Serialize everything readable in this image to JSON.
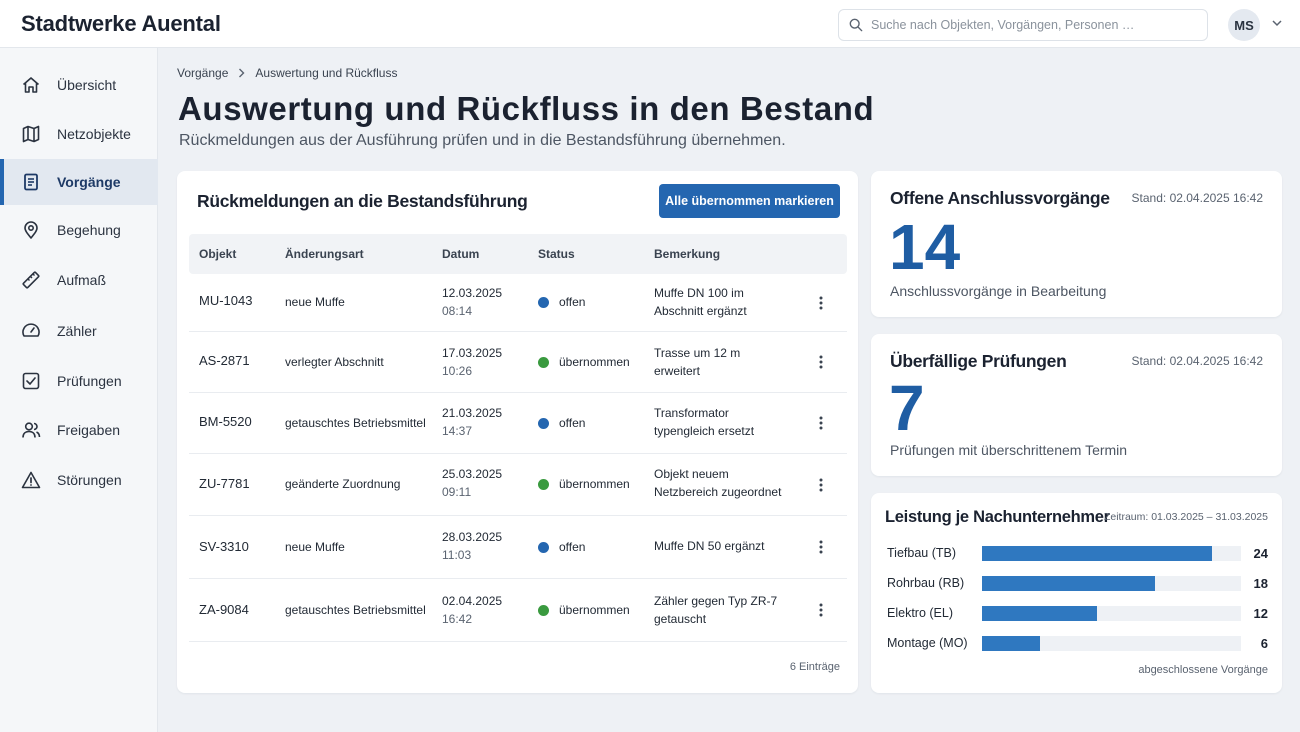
{
  "app": {
    "title": "Stadtwerke Auental"
  },
  "search": {
    "placeholder": "Suche nach Objekten, Vorgängen, Personen …"
  },
  "user": {
    "initials": "MS"
  },
  "sidebar": {
    "items": [
      {
        "label": "Übersicht",
        "icon": "home-icon"
      },
      {
        "label": "Netzobjekte",
        "icon": "map-icon"
      },
      {
        "label": "Vorgänge",
        "icon": "document-icon",
        "active": true
      },
      {
        "label": "Begehung",
        "icon": "map-pin-icon"
      },
      {
        "label": "Aufmaß",
        "icon": "ruler-icon"
      },
      {
        "label": "Zähler",
        "icon": "gauge-icon"
      },
      {
        "label": "Prüfungen",
        "icon": "checkbox-icon"
      },
      {
        "label": "Freigaben",
        "icon": "users-icon"
      },
      {
        "label": "Störungen",
        "icon": "warning-icon"
      }
    ]
  },
  "breadcrumb": {
    "parent": "Vorgänge",
    "current": "Auswertung und Rückfluss"
  },
  "page": {
    "title": "Auswertung und Rückfluss in den Bestand",
    "subtitle": "Rückmeldungen aus der Ausführung prüfen und in die Bestandsführung übernehmen."
  },
  "feedback": {
    "title": "Rückmeldungen an die Bestandsführung",
    "action_label": "Alle übernommen markieren",
    "columns": [
      "Objekt",
      "Änderungsart",
      "Datum",
      "Status",
      "Bemerkung"
    ],
    "rows": [
      {
        "object": "MU-1043",
        "type": "neue Muffe",
        "date": "12.03.2025",
        "time": "08:14",
        "status": "offen",
        "note": "Muffe DN 100 im Abschnitt ergänzt"
      },
      {
        "object": "AS-2871",
        "type": "verlegter Abschnitt",
        "date": "17.03.2025",
        "time": "10:26",
        "status": "übernommen",
        "note": "Trasse um 12 m erweitert"
      },
      {
        "object": "BM-5520",
        "type": "getauschtes Betriebsmittel",
        "date": "21.03.2025",
        "time": "14:37",
        "status": "offen",
        "note": "Transformator typengleich ersetzt"
      },
      {
        "object": "ZU-7781",
        "type": "geänderte Zuordnung",
        "date": "25.03.2025",
        "time": "09:11",
        "status": "übernommen",
        "note": "Objekt neuem Netzbereich zugeordnet"
      },
      {
        "object": "SV-3310",
        "type": "neue Muffe",
        "date": "28.03.2025",
        "time": "11:03",
        "status": "offen",
        "note": "Muffe DN 50 ergänzt"
      },
      {
        "object": "ZA-9084",
        "type": "getauschtes Betriebsmittel",
        "date": "02.04.2025",
        "time": "16:42",
        "status": "übernommen",
        "note": "Zähler gegen Typ ZR-7 getauscht"
      }
    ],
    "entries_label": "6 Einträge"
  },
  "status_colors": {
    "offen": "#2466b0",
    "übernommen": "#3a9a3f"
  },
  "kpi_open": {
    "title": "Offene Anschlussvorgänge",
    "stand": "Stand: 02.04.2025 16:42",
    "value": "14",
    "caption": "Anschlussvorgänge in Bearbeitung"
  },
  "kpi_overdue": {
    "title": "Überfällige Prüfungen",
    "stand": "Stand: 02.04.2025 16:42",
    "value": "7",
    "caption": "Prüfungen mit überschrittenem Termin"
  },
  "performance": {
    "title": "Leistung je Nachunternehmer",
    "range": "Zeitraum: 01.03.2025 – 31.03.2025",
    "footer": "abgeschlossene Vorgänge",
    "max": 27,
    "bars": [
      {
        "label": "Tiefbau (TB)",
        "value": 24
      },
      {
        "label": "Rohrbau (RB)",
        "value": 18
      },
      {
        "label": "Elektro (EL)",
        "value": 12
      },
      {
        "label": "Montage (MO)",
        "value": 6
      }
    ]
  }
}
